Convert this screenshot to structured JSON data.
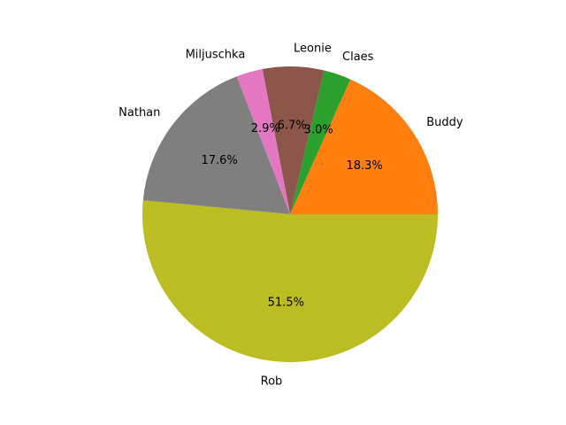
{
  "chart_data": {
    "type": "pie",
    "title": "",
    "start_angle_deg": 0,
    "direction": "counterclockwise",
    "slices": [
      {
        "label": "Buddy",
        "value": 18.3,
        "pct_label": "18.3%",
        "color": "#ff7f0e"
      },
      {
        "label": "Claes",
        "value": 3.0,
        "pct_label": "3.0%",
        "color": "#2ca02c"
      },
      {
        "label": "Leonie",
        "value": 6.7,
        "pct_label": "6.7%",
        "color": "#8c564b"
      },
      {
        "label": "Miljuschka",
        "value": 2.9,
        "pct_label": "2.9%",
        "color": "#e377c2"
      },
      {
        "label": "Nathan",
        "value": 17.6,
        "pct_label": "17.6%",
        "color": "#7f7f7f"
      },
      {
        "label": "Rob",
        "value": 51.5,
        "pct_label": "51.5%",
        "color": "#bcbd22"
      }
    ]
  }
}
